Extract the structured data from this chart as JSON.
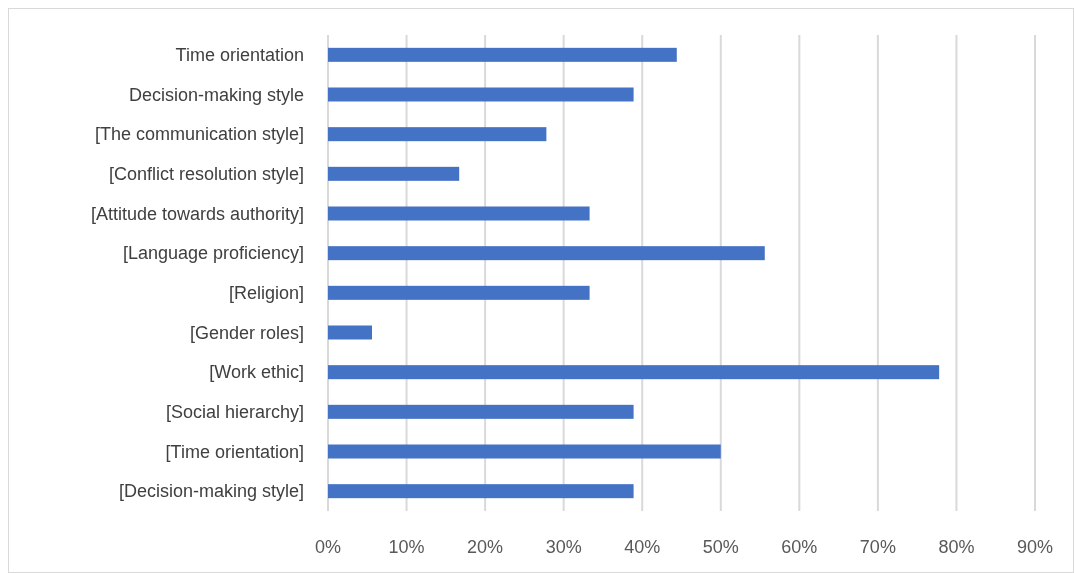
{
  "chart_data": {
    "type": "bar",
    "orientation": "horizontal",
    "categories": [
      "Time orientation",
      "Decision-making style",
      "[The communication style]",
      "[Conflict resolution style]",
      "[Attitude towards authority]",
      "[Language proficiency]",
      "[Religion]",
      "[Gender roles]",
      "[Work ethic]",
      "[Social hierarchy]",
      "[Time orientation]",
      "[Decision-making style]"
    ],
    "values": [
      44.4,
      38.9,
      27.8,
      16.7,
      33.3,
      55.6,
      33.3,
      5.6,
      77.8,
      38.9,
      50,
      38.9
    ],
    "color": "#4472c4",
    "xlim": [
      0,
      90
    ],
    "xticks": [
      {
        "value": 0,
        "label": "0%"
      },
      {
        "value": 10,
        "label": "10%"
      },
      {
        "value": 20,
        "label": "20%"
      },
      {
        "value": 30,
        "label": "30%"
      },
      {
        "value": 40,
        "label": "40%"
      },
      {
        "value": 50,
        "label": "50%"
      },
      {
        "value": 60,
        "label": "60%"
      },
      {
        "value": 70,
        "label": "70%"
      },
      {
        "value": 80,
        "label": "80%"
      },
      {
        "value": 90,
        "label": "90%"
      }
    ],
    "grid": "x"
  }
}
